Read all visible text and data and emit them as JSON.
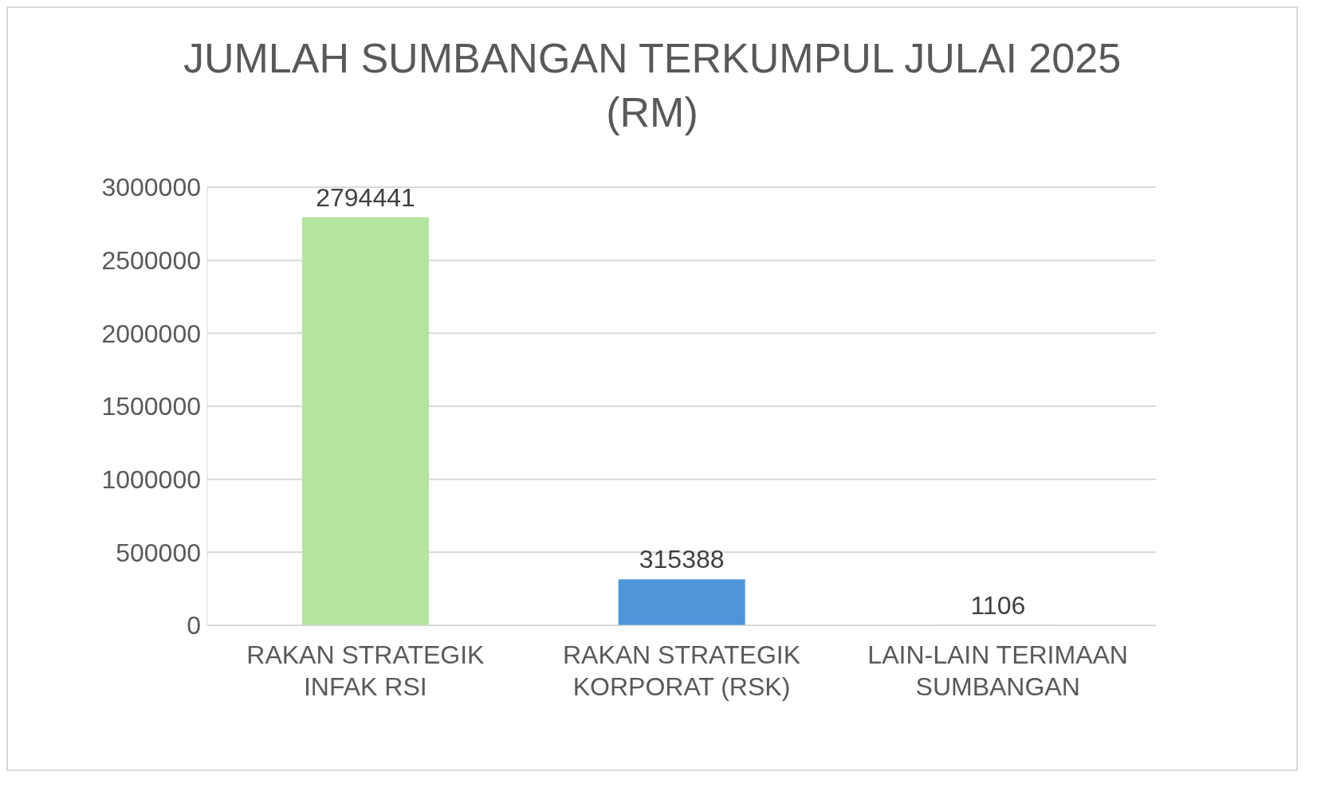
{
  "chart_data": {
    "type": "bar",
    "title": "JUMLAH SUMBANGAN TERKUMPUL JULAI 2025 (RM)",
    "categories": [
      "RAKAN STRATEGIK INFAK RSI",
      "RAKAN STRATEGIK KORPORAT (RSK)",
      "LAIN-LAIN TERIMAAN SUMBANGAN"
    ],
    "values": [
      2794441,
      315388,
      1106
    ],
    "colors": [
      "#b5e3a0",
      "#4e95d9",
      "#bb9580"
    ],
    "ylim": [
      0,
      3000000
    ],
    "yticks": [
      0,
      500000,
      1000000,
      1500000,
      2000000,
      2500000,
      3000000
    ],
    "grid": "y",
    "data_labels": true
  }
}
